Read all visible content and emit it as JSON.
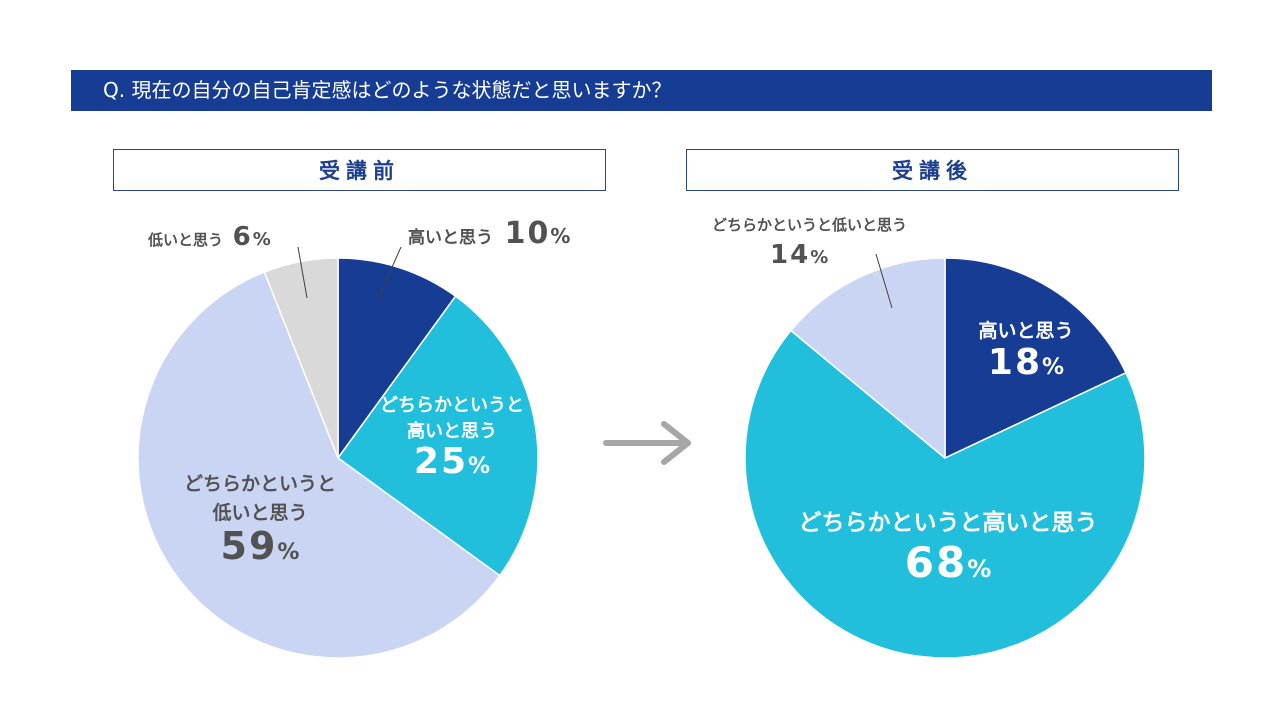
{
  "header": {
    "question": "Q. 現在の自分の自己肯定感はどのような状態だと思いますか？"
  },
  "percent_sign": "%",
  "chart_data": [
    {
      "type": "pie",
      "title": "受講前",
      "slices": [
        {
          "label": "高いと思う",
          "value": 10,
          "value_text": "10",
          "color": "#173c93"
        },
        {
          "label": "どちらかというと高いと思う",
          "label_lines": [
            "どちらかというと",
            "高いと思う"
          ],
          "value": 25,
          "value_text": "25",
          "color": "#22bfdd"
        },
        {
          "label": "どちらかというと低いと思う",
          "label_lines": [
            "どちらかというと",
            "低いと思う"
          ],
          "value": 59,
          "value_text": "59",
          "color": "#c9d5f3"
        },
        {
          "label": "低いと思う",
          "value": 6,
          "value_text": "6",
          "color": "#d9d9d9"
        }
      ]
    },
    {
      "type": "pie",
      "title": "受講後",
      "slices": [
        {
          "label": "高いと思う",
          "value": 18,
          "value_text": "18",
          "color": "#173c93"
        },
        {
          "label": "どちらかというと高いと思う",
          "value": 68,
          "value_text": "68",
          "color": "#22bfdd"
        },
        {
          "label": "どちらかというと低いと思う",
          "value": 14,
          "value_text": "14",
          "color": "#c9d5f3"
        }
      ]
    }
  ]
}
